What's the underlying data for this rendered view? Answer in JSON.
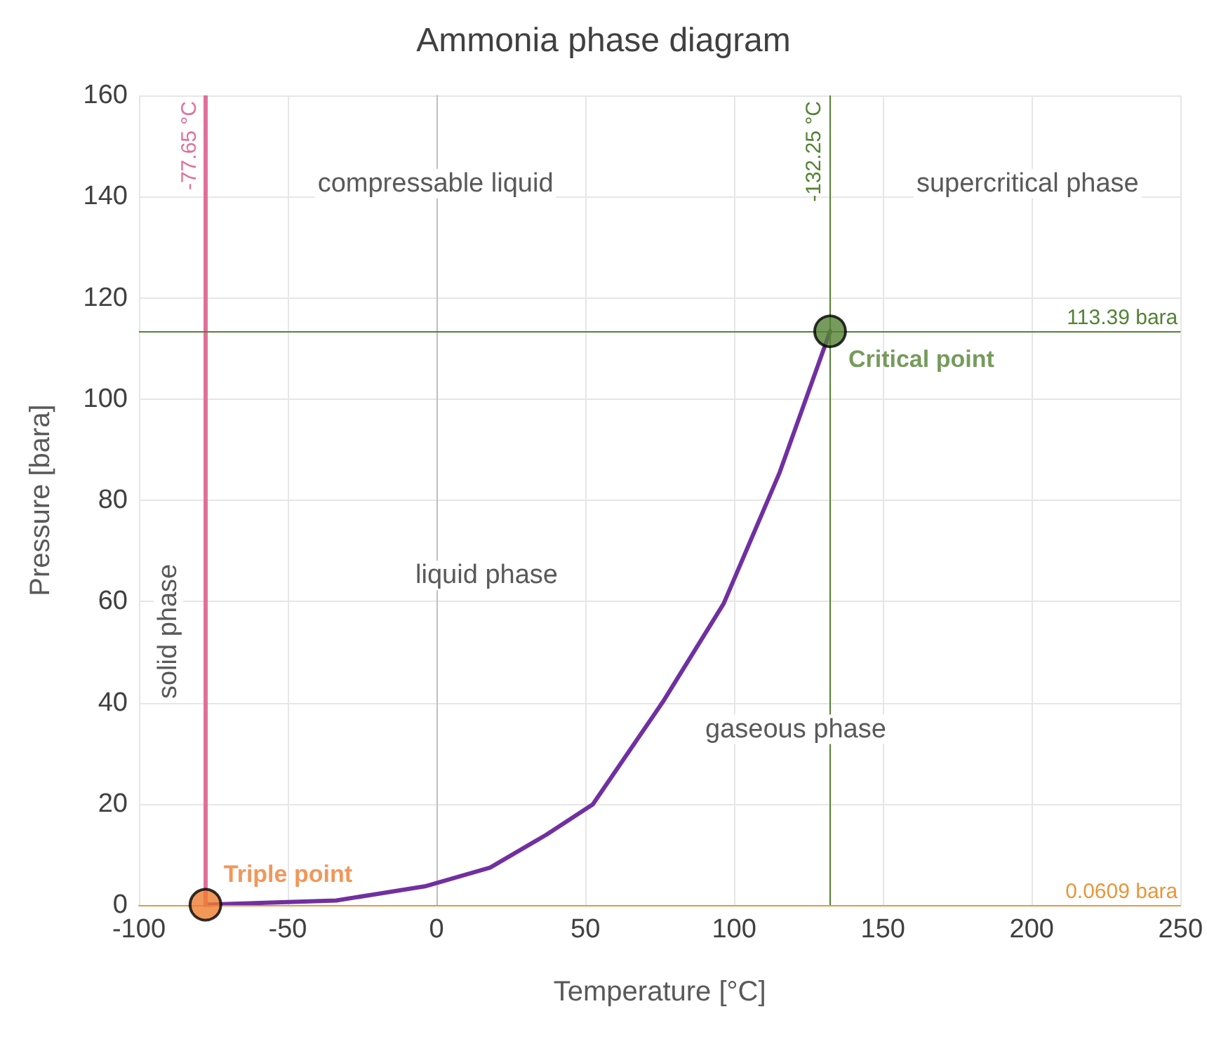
{
  "chart_data": {
    "type": "line",
    "title": "Ammonia phase diagram",
    "xlabel": "Temperature [°C]",
    "ylabel": "Pressure [bara]",
    "xlim": [
      -100,
      250
    ],
    "xticks": [
      -100,
      -50,
      0,
      50,
      100,
      150,
      200,
      250
    ],
    "ylim": [
      0,
      160
    ],
    "yticks": [
      0,
      20,
      40,
      60,
      80,
      100,
      120,
      140,
      160
    ],
    "grid": true,
    "legend": false,
    "series": [
      {
        "color": "#7030a0",
        "marker": "none",
        "x": [
          -77.65,
          -33.7,
          -3.9,
          18,
          36.9,
          52.5,
          76.1,
          96.5,
          115.3,
          132.25
        ],
        "values": [
          0.0609,
          0.9,
          3.7,
          7.4,
          13.9,
          19.9,
          40.2,
          59.6,
          85.5,
          113.39
        ]
      },
      {
        "type": "scatter",
        "name": "Triple point",
        "color": "#ed7d31",
        "marker": "circle",
        "x": [
          -77.65
        ],
        "values": [
          0.0609
        ]
      },
      {
        "type": "scatter",
        "name": "Critical point",
        "color": "#548235",
        "marker": "circle",
        "x": [
          132.25
        ],
        "values": [
          113.39
        ]
      }
    ],
    "ref_lines": [
      {
        "axis": "x",
        "value": -77.65,
        "label": "-77.65 °C",
        "color": "#e0709a"
      },
      {
        "axis": "x",
        "value": 132.25,
        "label": "-132.25 °C",
        "color": "#548235"
      },
      {
        "axis": "y",
        "value": 113.39,
        "label": "113.39 bara",
        "color": "#548235"
      },
      {
        "axis": "y",
        "value": 0.0609,
        "label": "0.0609 bara",
        "color": "#e8963c"
      }
    ],
    "annotations": [
      "compressable liquid",
      "supercritical phase",
      "liquid phase",
      "gaseous phase",
      "solid phase"
    ]
  }
}
